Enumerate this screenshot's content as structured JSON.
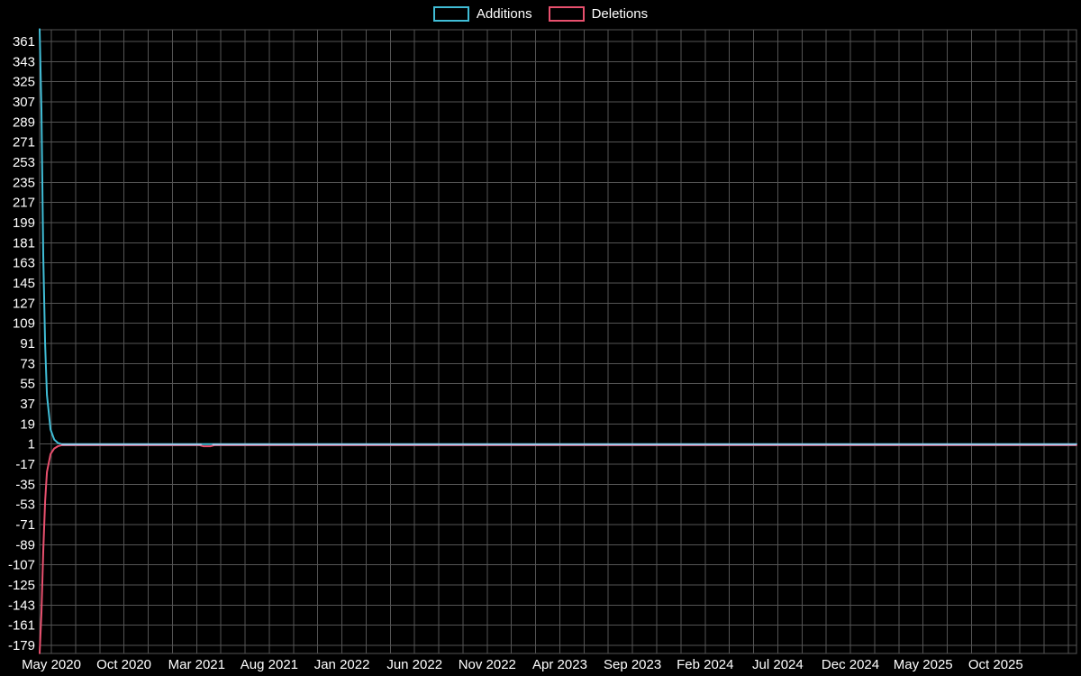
{
  "colors": {
    "background": "#000000",
    "grid": "#545454",
    "text": "#ffffff",
    "additions": "#40bdd6",
    "deletions": "#e8506e",
    "overlap_line": "#abc8e8"
  },
  "legend": {
    "items": [
      {
        "label": "Additions",
        "color": "#40bdd6"
      },
      {
        "label": "Deletions",
        "color": "#e8506e"
      }
    ]
  },
  "chart_data": {
    "type": "line",
    "title": "",
    "legend_position": "top-center",
    "grid": true,
    "x_tick_labels": [
      "May 2020",
      "Oct 2020",
      "Mar 2021",
      "Aug 2021",
      "Jan 2022",
      "Jun 2022",
      "Nov 2022",
      "Apr 2023",
      "Sep 2023",
      "Feb 2024",
      "Jul 2024",
      "Dec 2024",
      "May 2025",
      "Oct 2025"
    ],
    "x_axis_minor_gridlines_per_label": 3,
    "y_ticks": [
      361,
      343,
      325,
      307,
      289,
      271,
      253,
      235,
      217,
      199,
      181,
      163,
      145,
      127,
      109,
      91,
      73,
      55,
      37,
      19,
      1,
      -17,
      -35,
      -53,
      -71,
      -89,
      -107,
      -125,
      -143,
      -161,
      -179
    ],
    "y_range_displayed": [
      -186,
      372
    ],
    "weeks_total": 285,
    "series": [
      {
        "name": "Additions",
        "color": "#40bdd6",
        "points": [
          [
            0,
            372
          ],
          [
            0.5,
            300
          ],
          [
            1,
            170
          ],
          [
            1.5,
            90
          ],
          [
            2,
            45
          ],
          [
            3,
            14
          ],
          [
            4,
            5
          ],
          [
            5,
            2
          ],
          [
            6,
            1
          ],
          [
            285,
            1
          ]
        ]
      },
      {
        "name": "Deletions",
        "color": "#e8506e",
        "points": [
          [
            0,
            -186
          ],
          [
            0.5,
            -150
          ],
          [
            1,
            -95
          ],
          [
            1.5,
            -50
          ],
          [
            2,
            -24
          ],
          [
            3,
            -8
          ],
          [
            4,
            -3
          ],
          [
            5,
            -1
          ],
          [
            6,
            0
          ],
          [
            44,
            0
          ],
          [
            45,
            -1
          ],
          [
            47,
            -1
          ],
          [
            48,
            0
          ],
          [
            285,
            0
          ]
        ]
      }
    ],
    "overlap_line": {
      "color": "#abc8e8",
      "value": 0.5,
      "segments_weeks": [
        [
          6,
          44.5
        ],
        [
          47.5,
          285
        ]
      ]
    }
  }
}
